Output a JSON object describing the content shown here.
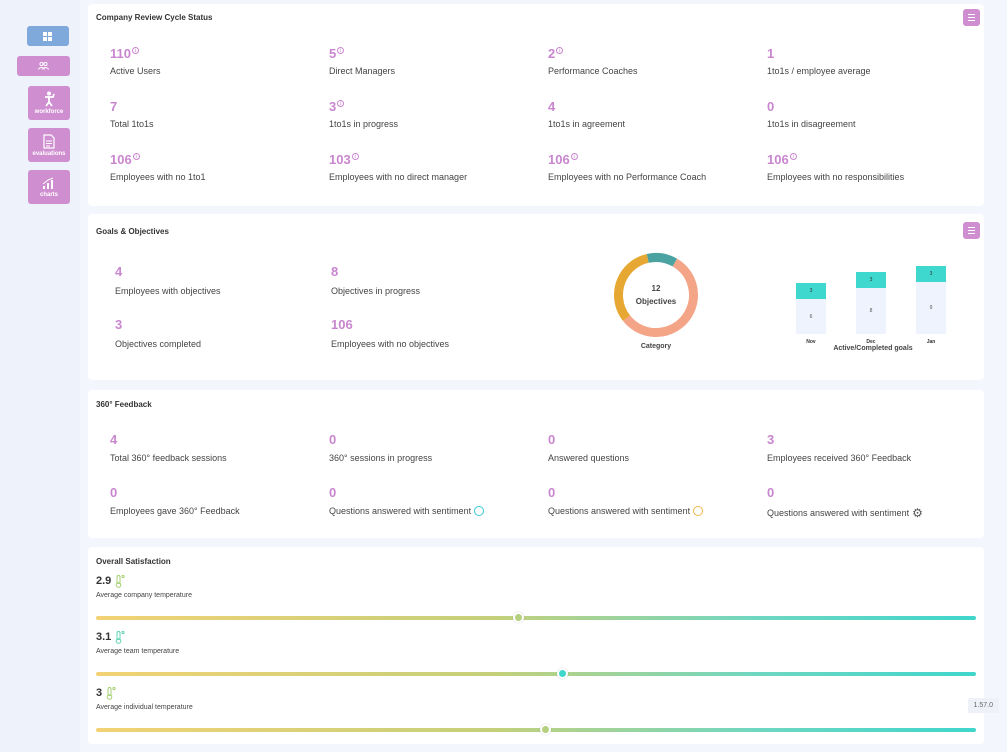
{
  "sidebar": {
    "items": [
      {
        "label": ""
      },
      {
        "label": ""
      },
      {
        "label": "workforce"
      },
      {
        "label": "evaluations"
      },
      {
        "label": "charts"
      }
    ]
  },
  "review": {
    "title": "Company Review Cycle Status",
    "stats": [
      {
        "value": "110",
        "label": "Active Users"
      },
      {
        "value": "5",
        "label": "Direct Managers"
      },
      {
        "value": "2",
        "label": "Performance Coaches"
      },
      {
        "value": "1",
        "label": "1to1s / employee average"
      },
      {
        "value": "7",
        "label": "Total 1to1s"
      },
      {
        "value": "3",
        "label": "1to1s in progress"
      },
      {
        "value": "4",
        "label": "1to1s in agreement"
      },
      {
        "value": "0",
        "label": "1to1s in disagreement"
      },
      {
        "value": "106",
        "label": "Employees with no 1to1"
      },
      {
        "value": "103",
        "label": "Employees with no direct manager"
      },
      {
        "value": "106",
        "label": "Employees with no Performance Coach"
      },
      {
        "value": "106",
        "label": "Employees with no responsibilities"
      }
    ]
  },
  "goals": {
    "title": "Goals & Objectives",
    "stats": [
      {
        "value": "4",
        "label": "Employees with objectives"
      },
      {
        "value": "8",
        "label": "Objectives in progress"
      },
      {
        "value": "3",
        "label": "Objectives completed"
      },
      {
        "value": "106",
        "label": "Employees with no objectives"
      }
    ],
    "donut": {
      "count": "12",
      "label": "Objectives",
      "caption": "Category"
    },
    "bars_caption": "Active/Completed goals"
  },
  "feedback": {
    "title": "360° Feedback",
    "stats": [
      {
        "value": "4",
        "label": "Total 360° feedback sessions"
      },
      {
        "value": "0",
        "label": "360° sessions in progress"
      },
      {
        "value": "0",
        "label": "Answered questions"
      },
      {
        "value": "3",
        "label": "Employees received 360° Feedback"
      },
      {
        "value": "0",
        "label": "Employees gave 360° Feedback"
      },
      {
        "value": "0",
        "label": "Questions answered with sentiment"
      },
      {
        "value": "0",
        "label": "Questions answered with sentiment"
      },
      {
        "value": "0",
        "label": "Questions answered with sentiment"
      }
    ]
  },
  "satisfaction": {
    "title": "Overall Satisfaction",
    "rows": [
      {
        "value": "2.9",
        "label": "Average company temperature",
        "level": 0.48,
        "knob_color": "#b4cf7e",
        "icon_color": "#a6cf6f"
      },
      {
        "value": "3.1",
        "label": "Average team temperature",
        "level": 0.53,
        "knob_color": "#3fd6cc",
        "icon_color": "#5fd4b6"
      },
      {
        "value": "3",
        "label": "Average individual temperature",
        "level": 0.51,
        "knob_color": "#b4cf7e",
        "icon_color": "#a6cf6f"
      }
    ]
  },
  "version": "1.57.0",
  "chart_data": [
    {
      "type": "pie",
      "title": "",
      "center_text": "12 Objectives",
      "caption": "Category",
      "slices": [
        {
          "value": 7,
          "color": "#f4a487"
        },
        {
          "value": 4,
          "color": "#e6a733"
        },
        {
          "value": 1.5,
          "color": "#4aa3a0"
        }
      ]
    },
    {
      "type": "bar",
      "title": "",
      "caption": "Active/Completed goals",
      "categories": [
        "Nov",
        "Dec",
        "Jan"
      ],
      "stacked": true,
      "series": [
        {
          "values": [
            6,
            8,
            9
          ],
          "color": "#eef3fd"
        },
        {
          "values": [
            3,
            3,
            3
          ],
          "color": "#3fd8cf"
        }
      ]
    }
  ]
}
